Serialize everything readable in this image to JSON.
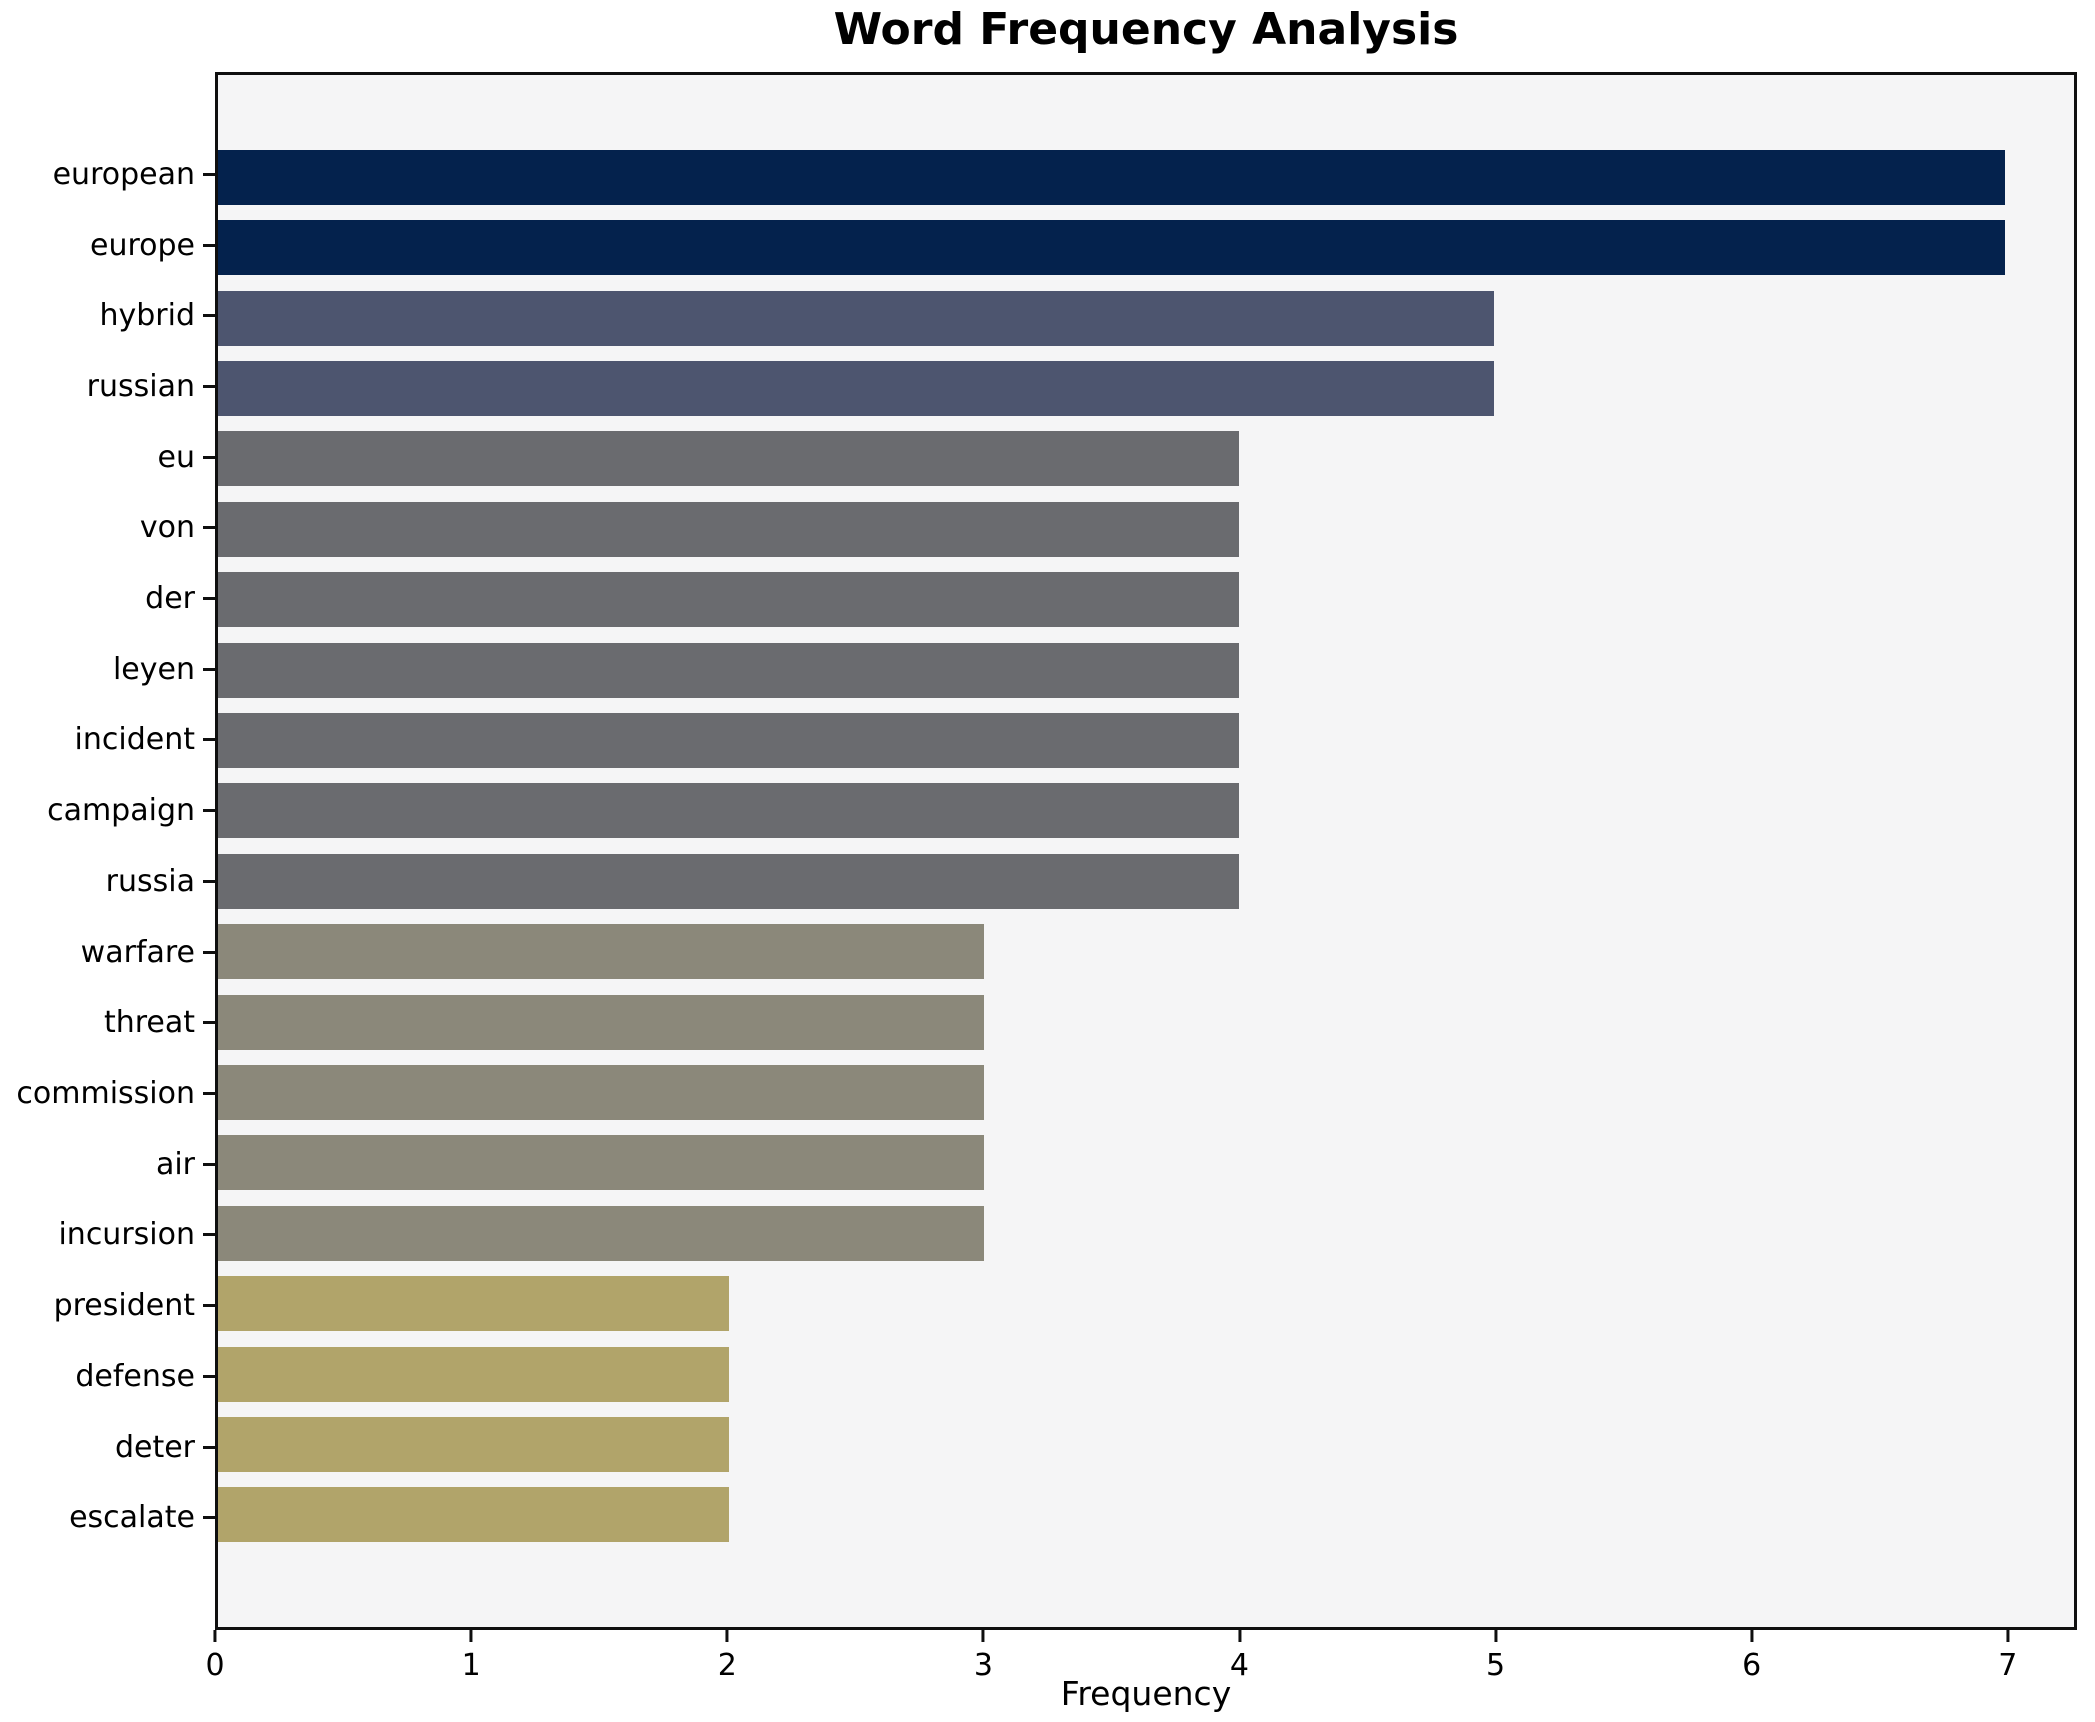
{
  "chart_data": {
    "type": "bar",
    "orientation": "horizontal",
    "title": "Word Frequency Analysis",
    "xlabel": "Frequency",
    "ylabel": "",
    "categories": [
      "european",
      "europe",
      "hybrid",
      "russian",
      "eu",
      "von",
      "der",
      "leyen",
      "incident",
      "campaign",
      "russia",
      "warfare",
      "threat",
      "commission",
      "air",
      "incursion",
      "president",
      "defense",
      "deter",
      "escalate"
    ],
    "values": [
      7,
      7,
      5,
      5,
      4,
      4,
      4,
      4,
      4,
      4,
      4,
      3,
      3,
      3,
      3,
      3,
      2,
      2,
      2,
      2
    ],
    "bar_colors": [
      "#04224d",
      "#04224d",
      "#4d556f",
      "#4d556f",
      "#6a6b6f",
      "#6a6b6f",
      "#6a6b6f",
      "#6a6b6f",
      "#6a6b6f",
      "#6a6b6f",
      "#6a6b6f",
      "#8b887a",
      "#8b887a",
      "#8b887a",
      "#8b887a",
      "#8b887a",
      "#b1a46a",
      "#b1a46a",
      "#b1a46a",
      "#b1a46a"
    ],
    "xlim": [
      0,
      7.27
    ],
    "x_ticks": [
      0,
      1,
      2,
      3,
      4,
      5,
      6,
      7
    ],
    "grid": false,
    "legend": "none",
    "plot_background": "#f5f5f6",
    "figure_background": "#ffffff",
    "spine_color": "#0f0f0f",
    "text_color": "#000000"
  }
}
